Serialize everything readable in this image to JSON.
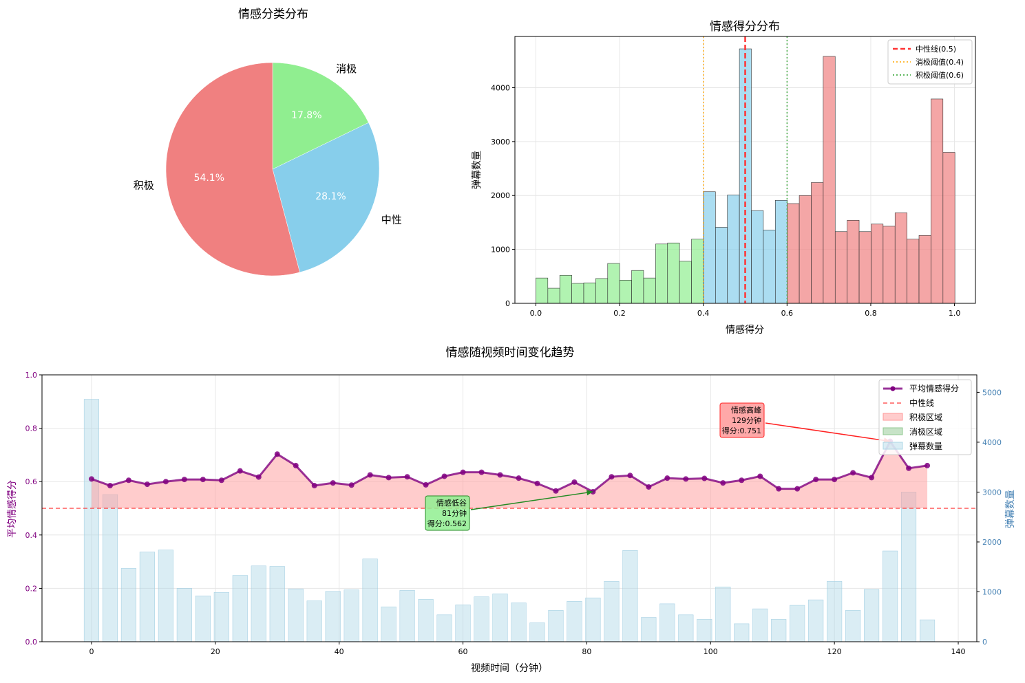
{
  "colors": {
    "positive": "#f08080",
    "neutral": "#87ceeb",
    "negative": "#90ee90",
    "trend": "#800080",
    "neutral_line": "#ff3333",
    "neg_threshold": "#ffa500",
    "pos_threshold": "#2ca02c",
    "bars": "#add8e6",
    "left_axis": "#800080",
    "right_axis": "#4682b4"
  },
  "chart_data": [
    {
      "type": "pie",
      "title": "情感分类分布",
      "slices": [
        {
          "label": "消极",
          "value": 17.8,
          "pct_label": "17.8%",
          "color": "#90ee90"
        },
        {
          "label": "中性",
          "value": 28.1,
          "pct_label": "28.1%",
          "color": "#87ceeb"
        },
        {
          "label": "积极",
          "value": 54.1,
          "pct_label": "54.1%",
          "color": "#f08080"
        }
      ]
    },
    {
      "type": "bar",
      "subtype": "histogram",
      "title": "情感得分分布",
      "xlabel": "情感得分",
      "ylabel": "弹幕数量",
      "xlim": [
        -0.05,
        1.05
      ],
      "ylim": [
        0,
        4950
      ],
      "xticks": [
        0.0,
        0.2,
        0.4,
        0.6,
        0.8,
        1.0
      ],
      "xtick_labels": [
        "0.0",
        "0.2",
        "0.4",
        "0.6",
        "0.8",
        "1.0"
      ],
      "yticks": [
        0,
        1000,
        2000,
        3000,
        4000
      ],
      "ytick_labels": [
        "0",
        "1000",
        "2000",
        "3000",
        "4000"
      ],
      "bin_start": 0.0,
      "bin_width": 0.0286,
      "counts": [
        470,
        280,
        520,
        370,
        380,
        460,
        740,
        430,
        610,
        470,
        1100,
        1120,
        780,
        1190,
        2070,
        1410,
        2010,
        4720,
        1720,
        1360,
        1910,
        1850,
        2000,
        2240,
        4580,
        1330,
        1540,
        1330,
        1470,
        1430,
        1680,
        1190,
        1260,
        3790,
        2800
      ],
      "reference_lines": [
        {
          "name": "中性线(0.5)",
          "x": 0.5,
          "style": "dashed",
          "color": "#ff3333"
        },
        {
          "name": "消极阈值(0.4)",
          "x": 0.4,
          "style": "dotted",
          "color": "#ffa500"
        },
        {
          "name": "积极阈值(0.6)",
          "x": 0.6,
          "style": "dotted",
          "color": "#2ca02c"
        }
      ],
      "grid": true,
      "legend_position": "top-right"
    },
    {
      "type": "line",
      "title": "情感随视频时间变化趋势",
      "xlabel": "视频时间（分钟）",
      "ylabel": "平均情感得分",
      "y2label": "弹幕数量",
      "xlim": [
        -8,
        143
      ],
      "ylim": [
        0,
        1
      ],
      "y2lim": [
        0,
        5350
      ],
      "xticks": [
        0,
        20,
        40,
        60,
        80,
        100,
        120,
        140
      ],
      "xtick_labels": [
        "0",
        "20",
        "40",
        "60",
        "80",
        "100",
        "120",
        "140"
      ],
      "yticks": [
        0,
        0.2,
        0.4,
        0.6,
        0.8,
        1.0
      ],
      "ytick_labels": [
        "0.0",
        "0.2",
        "0.4",
        "0.6",
        "0.8",
        "1.0"
      ],
      "y2ticks": [
        0,
        1000,
        2000,
        3000,
        4000,
        5000
      ],
      "y2tick_labels": [
        "0",
        "1000",
        "2000",
        "3000",
        "4000",
        "5000"
      ],
      "x": [
        0,
        3,
        6,
        9,
        12,
        15,
        18,
        21,
        24,
        27,
        30,
        33,
        36,
        39,
        42,
        45,
        48,
        51,
        54,
        57,
        60,
        63,
        66,
        69,
        72,
        75,
        78,
        81,
        84,
        87,
        90,
        93,
        96,
        99,
        102,
        105,
        108,
        111,
        114,
        117,
        120,
        123,
        126,
        129,
        132,
        135
      ],
      "series": [
        {
          "name": "平均情感得分",
          "axis": "left",
          "values": [
            0.61,
            0.585,
            0.605,
            0.59,
            0.6,
            0.608,
            0.608,
            0.605,
            0.64,
            0.617,
            0.703,
            0.66,
            0.585,
            0.595,
            0.587,
            0.625,
            0.615,
            0.618,
            0.588,
            0.62,
            0.635,
            0.635,
            0.625,
            0.613,
            0.593,
            0.565,
            0.598,
            0.562,
            0.618,
            0.623,
            0.58,
            0.613,
            0.61,
            0.612,
            0.595,
            0.605,
            0.62,
            0.573,
            0.573,
            0.608,
            0.608,
            0.633,
            0.615,
            0.751,
            0.65,
            0.66
          ]
        },
        {
          "name": "弹幕数量",
          "axis": "right",
          "values": [
            4860,
            2950,
            1470,
            1800,
            1840,
            1070,
            920,
            990,
            1330,
            1520,
            1510,
            1060,
            820,
            1010,
            1040,
            1660,
            700,
            1030,
            850,
            540,
            740,
            900,
            960,
            780,
            380,
            630,
            810,
            880,
            1210,
            1830,
            490,
            760,
            540,
            450,
            1100,
            360,
            660,
            450,
            730,
            840,
            1210,
            630,
            1050,
            1820,
            3000,
            440
          ]
        }
      ],
      "reference_line": {
        "name": "中性线",
        "y": 0.5
      },
      "legend": [
        "平均情感得分",
        "中性线",
        "积极区域",
        "消极区域",
        "弹幕数量"
      ],
      "legend_position": "top-right",
      "grid": true,
      "annotations": [
        {
          "kind": "peak",
          "lines": [
            "情感高峰",
            "129分钟",
            "得分:0.751"
          ],
          "x": 129,
          "y": 0.751
        },
        {
          "kind": "trough",
          "lines": [
            "情感低谷",
            "81分钟",
            "得分:0.562"
          ],
          "x": 81,
          "y": 0.562
        }
      ]
    }
  ]
}
